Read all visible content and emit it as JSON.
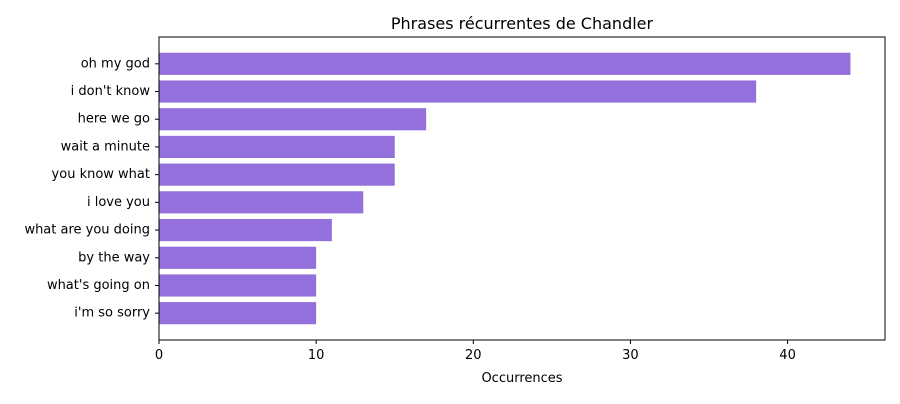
{
  "chart_data": {
    "type": "bar",
    "orientation": "horizontal",
    "title": "Phrases récurrentes de Chandler",
    "xlabel": "Occurrences",
    "ylabel": "",
    "categories": [
      "oh my god",
      "i don't know",
      "here we go",
      "wait a minute",
      "you know what",
      "i love you",
      "what are you doing",
      "by the way",
      "what's going on",
      "i'm so sorry"
    ],
    "values": [
      44,
      38,
      17,
      15,
      15,
      13,
      11,
      10,
      10,
      10
    ],
    "xlim": [
      0,
      46.2
    ],
    "xticks": [
      0,
      10,
      20,
      30,
      40
    ],
    "grid": false,
    "bar_color": "#9370db"
  }
}
